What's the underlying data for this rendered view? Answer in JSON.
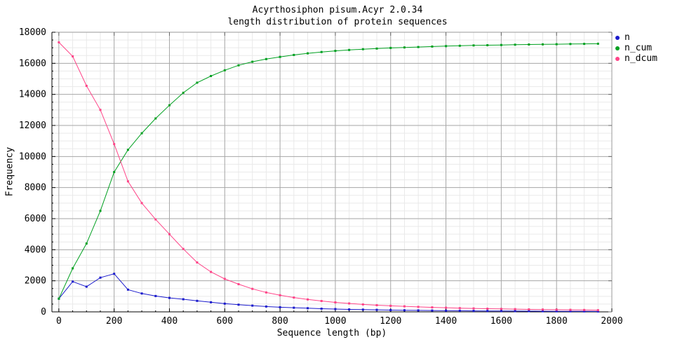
{
  "page": {
    "background": "#ffffff",
    "text_color": "#000000"
  },
  "chart_data": {
    "type": "line",
    "title_line1": "Acyrthosiphon pisum.Acyr 2.0.34",
    "title_line2": "length distribution of protein sequences",
    "xlabel": "Sequence length (bp)",
    "ylabel": "Frequency",
    "xlim": [
      -25,
      2000
    ],
    "ylim": [
      0,
      18000
    ],
    "x_ticks": [
      0,
      200,
      400,
      600,
      800,
      1000,
      1200,
      1400,
      1600,
      1800,
      2000
    ],
    "y_ticks": [
      0,
      2000,
      4000,
      6000,
      8000,
      10000,
      12000,
      14000,
      16000,
      18000
    ],
    "x_minor_step": 50,
    "y_minor_step": 500,
    "grid": true,
    "grid_major_color": "#a6a6a6",
    "grid_minor_color": "#e9e9e9",
    "legend_position": "top-right-outside",
    "marker": "square",
    "x": [
      0,
      50,
      100,
      150,
      200,
      250,
      300,
      350,
      400,
      450,
      500,
      550,
      600,
      650,
      700,
      750,
      800,
      850,
      900,
      950,
      1000,
      1050,
      1100,
      1150,
      1200,
      1250,
      1300,
      1350,
      1400,
      1450,
      1500,
      1550,
      1600,
      1650,
      1700,
      1750,
      1800,
      1850,
      1900,
      1950
    ],
    "series": [
      {
        "name": "n",
        "color": "#1a1acc",
        "values": [
          850,
          1950,
          1620,
          2200,
          2450,
          1430,
          1180,
          1020,
          900,
          810,
          710,
          620,
          530,
          460,
          400,
          345,
          300,
          265,
          235,
          205,
          180,
          160,
          145,
          130,
          115,
          105,
          95,
          85,
          78,
          70,
          64,
          58,
          53,
          48,
          44,
          40,
          37,
          34,
          31,
          28
        ]
      },
      {
        "name": "n_cum",
        "color": "#00a020",
        "values": [
          850,
          2800,
          4400,
          6500,
          9000,
          10430,
          11500,
          12450,
          13300,
          14100,
          14750,
          15180,
          15550,
          15870,
          16100,
          16270,
          16410,
          16540,
          16640,
          16730,
          16800,
          16860,
          16910,
          16950,
          16990,
          17020,
          17050,
          17080,
          17105,
          17130,
          17150,
          17165,
          17180,
          17195,
          17210,
          17220,
          17230,
          17240,
          17250,
          17260
        ]
      },
      {
        "name": "n_dcum",
        "color": "#ff4488",
        "values": [
          17350,
          16450,
          14550,
          13000,
          10800,
          8400,
          7000,
          5950,
          5000,
          4050,
          3180,
          2570,
          2120,
          1780,
          1480,
          1250,
          1070,
          920,
          800,
          700,
          610,
          540,
          480,
          430,
          390,
          355,
          320,
          290,
          265,
          240,
          220,
          205,
          190,
          175,
          160,
          150,
          140,
          130,
          120,
          110
        ]
      }
    ]
  }
}
